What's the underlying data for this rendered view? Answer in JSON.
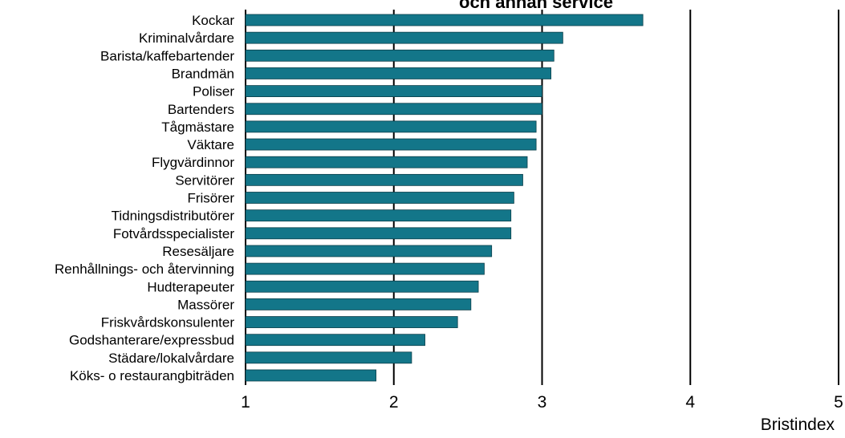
{
  "chart_data": {
    "type": "bar",
    "orientation": "horizontal",
    "title": "och annan service",
    "xlabel": "Bristindex",
    "xlim": [
      1,
      5
    ],
    "xticks": [
      1,
      2,
      3,
      4,
      5
    ],
    "grid": true,
    "bar_color": "#137689",
    "categories": [
      "Kockar",
      "Kriminalvårdare",
      "Barista/kaffebartender",
      "Brandmän",
      "Poliser",
      "Bartenders",
      "Tågmästare",
      "Väktare",
      "Flygvärdinnor",
      "Servitörer",
      "Frisörer",
      "Tidningsdistributörer",
      "Fotvårdsspecialister",
      "Resesäljare",
      "Renhållnings- och återvinning",
      "Hudterapeuter",
      "Massörer",
      "Friskvårdskonsulenter",
      "Godshanterare/expressbud",
      "Städare/lokalvårdare",
      "Köks- o restaurangbiträden"
    ],
    "values": [
      3.68,
      3.14,
      3.08,
      3.06,
      3.0,
      3.0,
      2.96,
      2.96,
      2.9,
      2.87,
      2.81,
      2.79,
      2.79,
      2.66,
      2.61,
      2.57,
      2.52,
      2.43,
      2.21,
      2.12,
      1.88
    ]
  }
}
